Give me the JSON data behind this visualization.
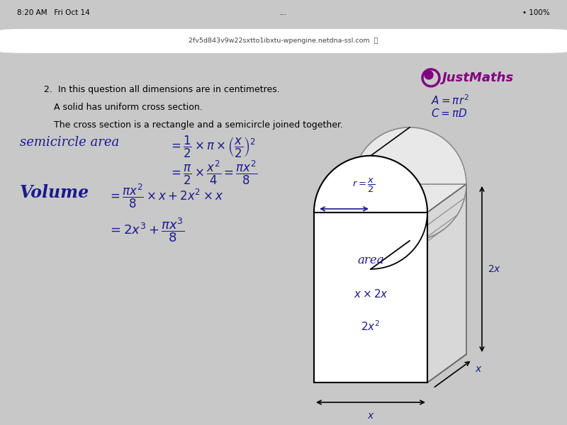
{
  "bg_top": "#c8c8c8",
  "bg_white": "#ffffff",
  "dark_color": "#1a1a8e",
  "status_bg": "#b0b0b0",
  "url_bar_bg": "#d8d8d8",
  "status_text": "8:20 AM   Fri Oct 14",
  "url_text": "2fv5d843v9w22sxtto1ibxtu-wpengine.netdna-ssl.com",
  "logo_color": "#800080",
  "q1": "2.  In this question all dimensions are in centimetres.",
  "q2": "A solid has uniform cross section.",
  "q3": "The cross section is a rectangle and a semicircle joined together."
}
